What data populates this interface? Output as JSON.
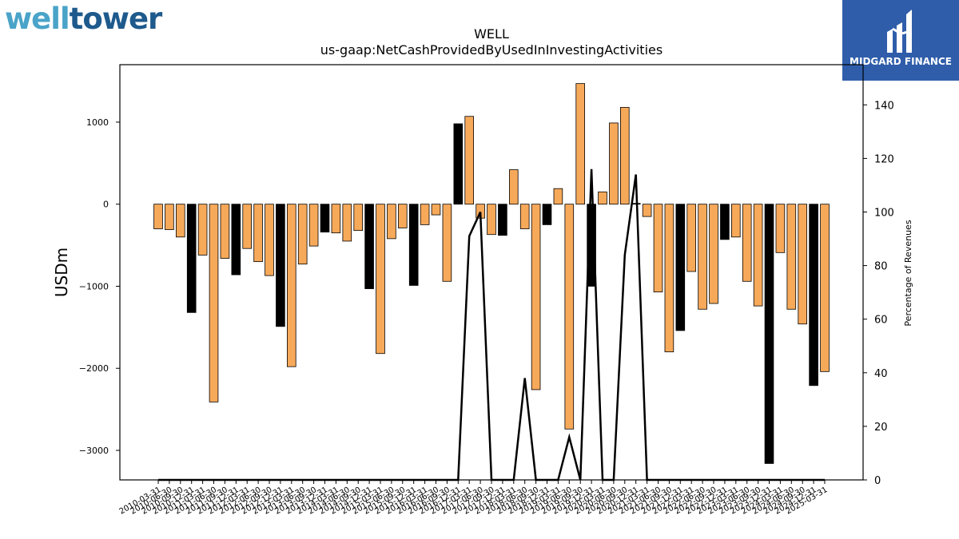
{
  "brand": {
    "left_logo_part1": "well",
    "left_logo_part2": "tower",
    "right_logo_name": "MIDGARD FINANCE",
    "colors": {
      "welltower_light": "#4aa3c8",
      "welltower_dark": "#1e5a8c",
      "midgard_bg": "#2f5daa"
    }
  },
  "chart_data": {
    "type": "bar",
    "title": "WELL",
    "subtitle": "us-gaap:NetCashProvidedByUsedInInvestingActivities",
    "ylabel": "USDm",
    "y2label": "Percentage of Revenues",
    "ylim": [
      -3360,
      1700
    ],
    "y2lim": [
      0,
      155
    ],
    "yticks": [
      -3000,
      -2000,
      -1000,
      0,
      1000
    ],
    "ytick_labels": [
      "−3000",
      "−2000",
      "−1000",
      "0",
      "1000"
    ],
    "y2ticks": [
      0,
      20,
      40,
      60,
      80,
      100,
      120,
      140
    ],
    "categories": [
      "2010-03-31",
      "2010-06-30",
      "2010-09-30",
      "2010-12-31",
      "2011-03-31",
      "2011-06-30",
      "2011-09-30",
      "2011-12-31",
      "2012-03-31",
      "2012-06-30",
      "2012-09-30",
      "2012-12-31",
      "2013-03-31",
      "2013-06-30",
      "2013-09-30",
      "2013-12-31",
      "2014-03-31",
      "2014-06-30",
      "2014-09-30",
      "2014-12-31",
      "2015-03-31",
      "2015-06-30",
      "2015-09-30",
      "2015-12-31",
      "2016-03-31",
      "2016-06-30",
      "2016-09-30",
      "2016-12-31",
      "2017-03-31",
      "2017-06-30",
      "2017-09-30",
      "2017-12-31",
      "2018-03-31",
      "2018-06-30",
      "2018-09-30",
      "2018-12-31",
      "2019-03-31",
      "2019-06-30",
      "2019-09-30",
      "2019-12-31",
      "2020-03-31",
      "2020-06-30",
      "2020-09-30",
      "2020-12-31",
      "2021-03-31",
      "2021-06-30",
      "2021-09-30",
      "2021-12-31",
      "2022-03-31",
      "2022-06-30",
      "2022-09-30",
      "2022-12-31",
      "2023-03-31",
      "2023-06-30",
      "2023-09-30",
      "2023-12-31",
      "2024-03-31",
      "2024-06-30",
      "2024-09-30",
      "2024-12-31",
      "2025-03-31"
    ],
    "values": [
      -300,
      -310,
      -400,
      -1320,
      -620,
      -2410,
      -660,
      -860,
      -540,
      -700,
      -870,
      -1490,
      -1980,
      -730,
      -510,
      -340,
      -350,
      -450,
      -320,
      -1030,
      -1820,
      -420,
      -290,
      -990,
      -250,
      -130,
      -940,
      980,
      1070,
      -170,
      -370,
      -380,
      420,
      -300,
      -2260,
      -250,
      190,
      -2740,
      1470,
      -1000,
      150,
      990,
      1180,
      10,
      -150,
      -1070,
      -1800,
      -1540,
      -820,
      -1280,
      -1210,
      -430,
      -400,
      -940,
      -1240,
      -3160,
      -590,
      -1280,
      -1460,
      -2210,
      -2040
    ],
    "bar_kind": [
      "o",
      "o",
      "o",
      "b",
      "o",
      "o",
      "o",
      "b",
      "o",
      "o",
      "o",
      "b",
      "o",
      "o",
      "o",
      "b",
      "o",
      "o",
      "o",
      "b",
      "o",
      "o",
      "o",
      "b",
      "o",
      "o",
      "o",
      "b",
      "o",
      "o",
      "o",
      "b",
      "o",
      "o",
      "o",
      "b",
      "o",
      "o",
      "o",
      "b",
      "o",
      "o",
      "o",
      "b",
      "o",
      "o",
      "o",
      "b",
      "o",
      "o",
      "o",
      "b",
      "o",
      "o",
      "o",
      "b",
      "o",
      "o",
      "o",
      "b",
      "o"
    ],
    "line_series": {
      "axis": "right",
      "values": [
        0,
        0,
        0,
        0,
        0,
        0,
        0,
        0,
        0,
        0,
        0,
        0,
        0,
        0,
        0,
        0,
        0,
        0,
        0,
        0,
        0,
        0,
        0,
        0,
        0,
        0,
        0,
        0,
        91,
        100,
        0,
        0,
        0,
        38,
        0,
        0,
        0,
        16,
        0,
        116,
        0,
        0,
        84,
        114,
        0,
        0,
        0,
        0,
        0,
        0,
        0,
        0,
        0,
        0,
        0,
        0,
        0,
        0,
        0,
        0,
        0
      ]
    },
    "colors": {
      "bar_orange": "#f7a95a",
      "bar_black": "#000000",
      "line": "#000000"
    },
    "grid": false,
    "legend": "none"
  }
}
